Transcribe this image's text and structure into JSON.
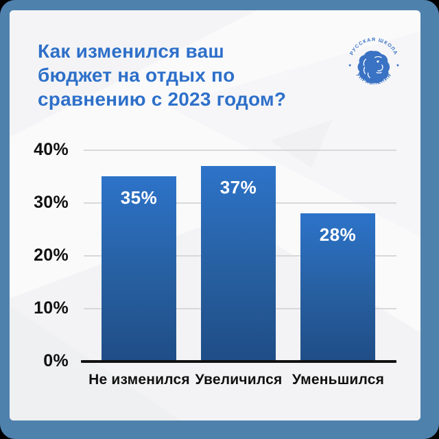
{
  "frame": {
    "border_color": "#4f81ad",
    "background": "#fafafb"
  },
  "header": {
    "title_lines": [
      "Как изменился ваш",
      "бюджет на отдых по",
      "сравнению с 2023 годом?"
    ],
    "title_color": "#2e70c9"
  },
  "logo": {
    "ring_top": "РУССКАЯ ШКОЛА",
    "ring_bottom": "УПРАВЛЕНИЯ",
    "color": "#3b73c3"
  },
  "chart_data": {
    "type": "bar",
    "title": "Как изменился ваш бюджет на отдых по сравнению с 2023 годом?",
    "categories": [
      "Не изменился",
      "Увеличился",
      "Уменьшился"
    ],
    "values": [
      35,
      37,
      28
    ],
    "value_labels": [
      "35%",
      "37%",
      "28%"
    ],
    "yticks": [
      0,
      10,
      20,
      30,
      40
    ],
    "ytick_labels": [
      "0%",
      "10%",
      "20%",
      "30%",
      "40%"
    ],
    "ylim": [
      0,
      40
    ],
    "grid": true,
    "legend": "none",
    "bar_color_top": "#2d73c9",
    "bar_color_bottom": "#1f4d87",
    "gridline_color": "#d8d8da",
    "axis_line_color": "#111111",
    "value_label_color": "#ffffff"
  }
}
